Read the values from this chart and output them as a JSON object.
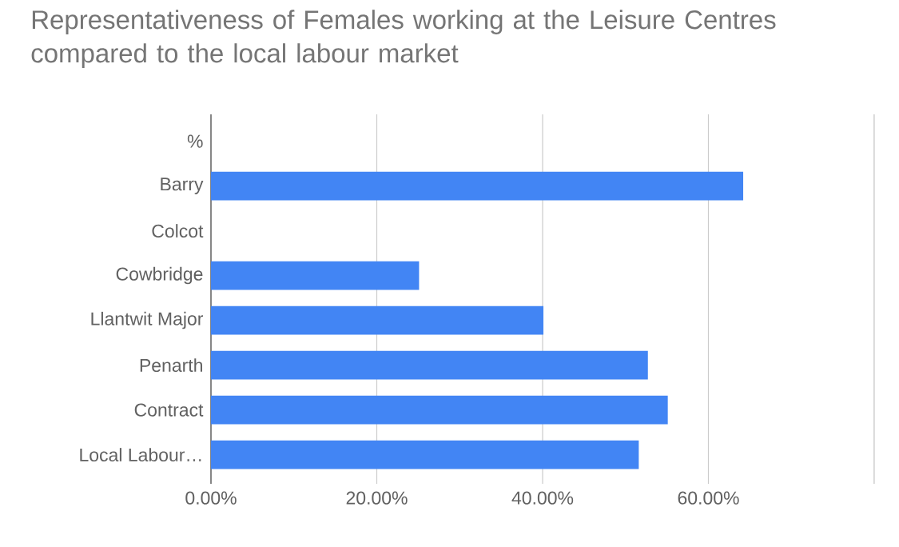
{
  "chart_data": {
    "type": "bar",
    "orientation": "horizontal",
    "title": "Representativeness of Females working at the Leisure Centres compared to the local labour market",
    "categories": [
      "%",
      "Barry",
      "Colcot",
      "Cowbridge",
      "Llantwit Major",
      "Penarth",
      "Contract",
      "Local Labour…"
    ],
    "values": [
      null,
      64.2,
      null,
      25.1,
      40.1,
      52.7,
      55.1,
      51.6
    ],
    "color": "#4285f4",
    "xlim": [
      0,
      80
    ],
    "xticks": [
      {
        "value": 0,
        "label": "0.00%"
      },
      {
        "value": 20,
        "label": "20.00%"
      },
      {
        "value": 40,
        "label": "40.00%"
      },
      {
        "value": 60,
        "label": "60.00%"
      },
      {
        "value": 80,
        "label": null
      }
    ],
    "grid": "x"
  }
}
